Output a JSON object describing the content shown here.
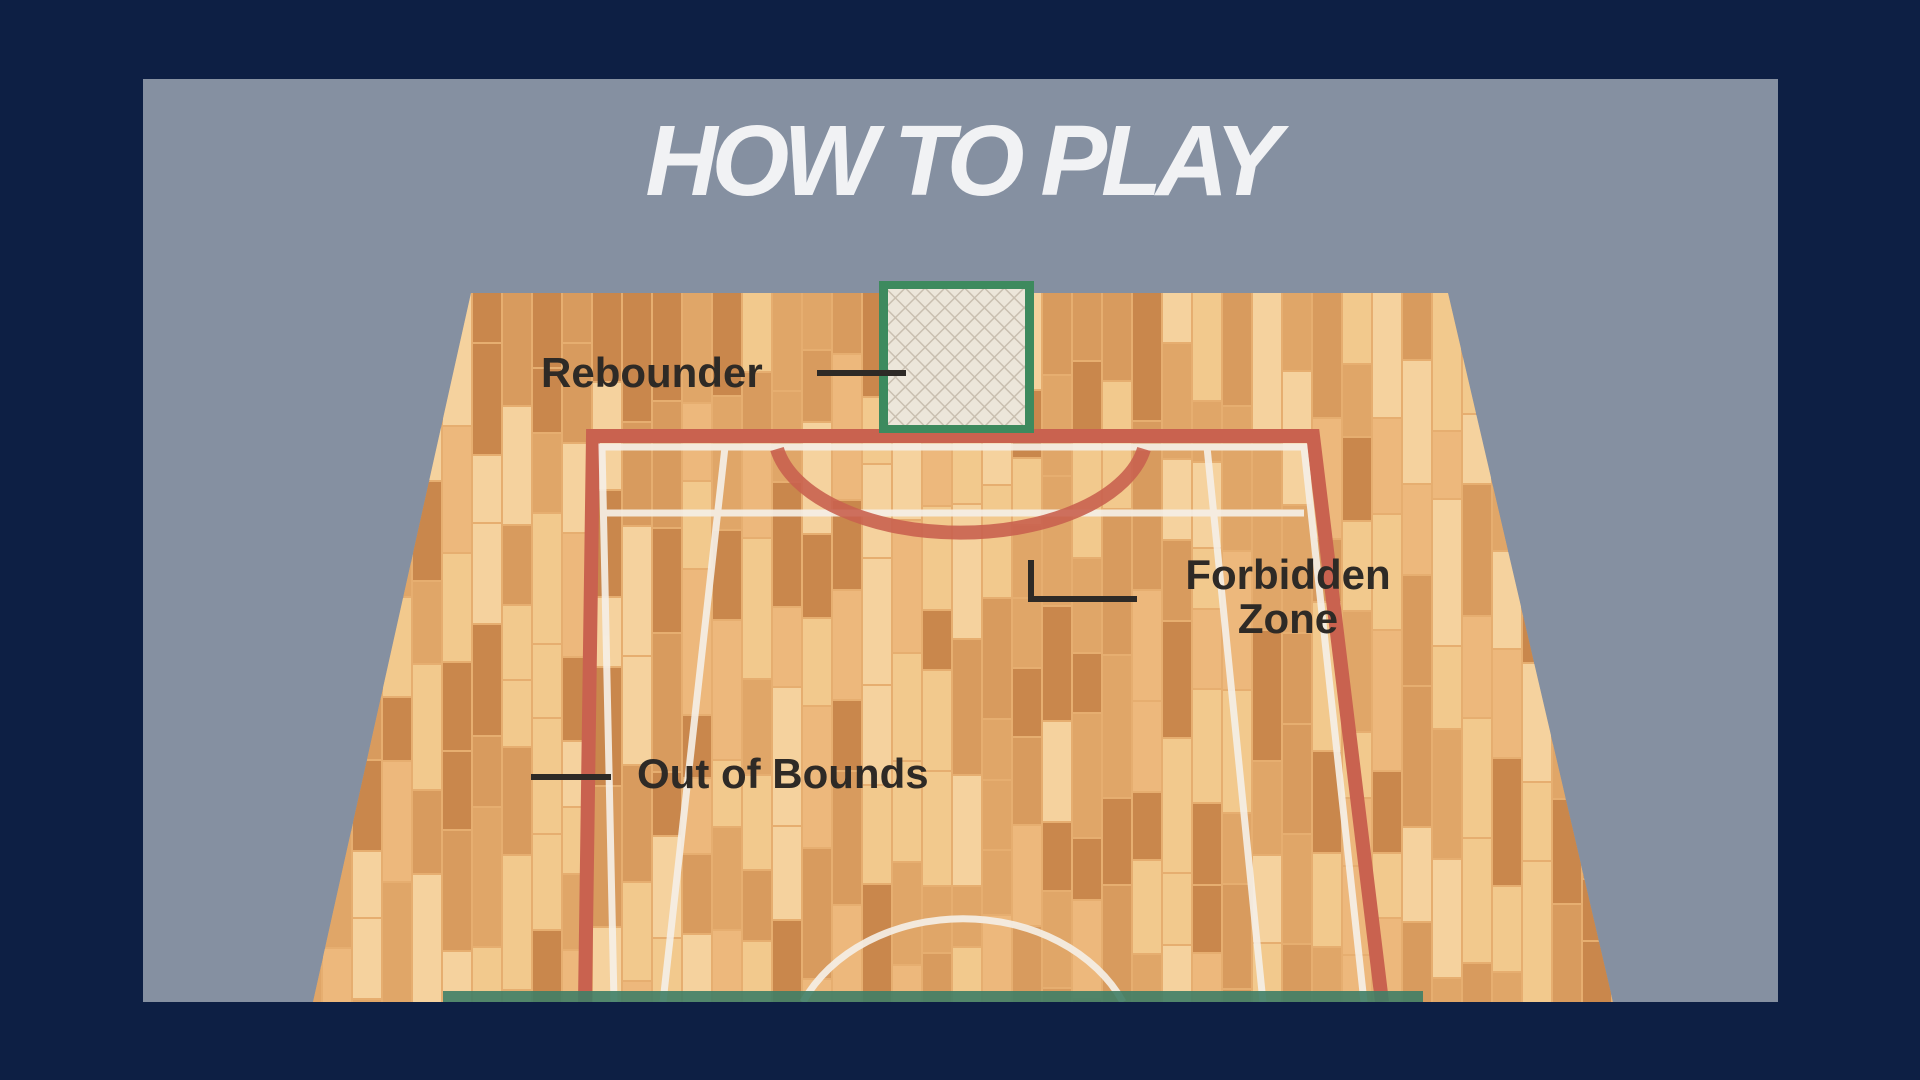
{
  "screen": {
    "title": "HOW TO PLAY",
    "colors": {
      "outer_background": "#0d1f44",
      "panel_background": "#8590a1",
      "title_text": "#f1f2f4",
      "label_text": "#2e2a26",
      "wood_light": "#f2c98d",
      "wood_mid": "#e0a668",
      "wood_dark": "#c9874c",
      "boundary_line": "#c9624f",
      "court_line": "#f5efe6",
      "rebounder_frame": "#3d8a5e",
      "baseline_green": "#3f7e66"
    }
  },
  "court": {
    "labels": {
      "rebounder": "Rebounder",
      "forbidden_zone_line1": "Forbidden",
      "forbidden_zone_line2": "Zone",
      "out_of_bounds": "Out of Bounds"
    },
    "icons": {
      "rebounder": "rebounder-net-icon"
    }
  }
}
